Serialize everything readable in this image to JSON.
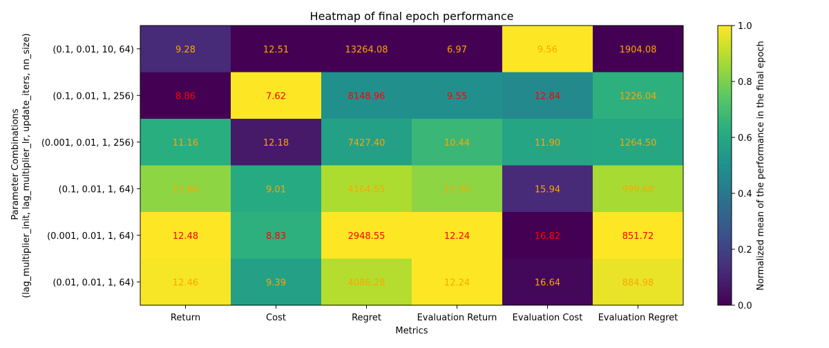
{
  "chart_data": {
    "type": "heatmap",
    "title": "Heatmap of final epoch performance",
    "xlabel": "Metrics",
    "ylabel_line1": "Parameter Combinations",
    "ylabel_line2": "(lag_multiplier_init, lag_multiplier_lr, update_iters, nn_size)",
    "columns": [
      "Return",
      "Cost",
      "Regret",
      "Evaluation Return",
      "Evaluation Cost",
      "Evaluation Regret"
    ],
    "rows": [
      "(0.1, 0.01, 10, 64)",
      "(0.1, 0.01, 1, 256)",
      "(0.001, 0.01, 1, 256)",
      "(0.1, 0.01, 1, 64)",
      "(0.001, 0.01, 1, 64)",
      "(0.01, 0.01, 1, 64)"
    ],
    "values": [
      [
        "9.28",
        "12.51",
        "13264.08",
        "6.97",
        "9.56",
        "1904.08"
      ],
      [
        "8.86",
        "7.62",
        "8148.96",
        "9.55",
        "12.84",
        "1226.04"
      ],
      [
        "11.16",
        "12.18",
        "7427.40",
        "10.44",
        "11.90",
        "1264.50"
      ],
      [
        "11.86",
        "9.01",
        "4164.55",
        "11.50",
        "15.94",
        "999.68"
      ],
      [
        "12.48",
        "8.83",
        "2948.55",
        "12.24",
        "16.82",
        "851.72"
      ],
      [
        "12.46",
        "9.39",
        "4086.28",
        "12.24",
        "16.64",
        "884.98"
      ]
    ],
    "normalized": [
      [
        0.12,
        0.0,
        0.0,
        0.0,
        1.0,
        0.0
      ],
      [
        0.0,
        1.0,
        0.5,
        0.5,
        0.47,
        0.64
      ],
      [
        0.63,
        0.07,
        0.57,
        0.67,
        0.59,
        0.6
      ],
      [
        0.83,
        0.61,
        0.88,
        0.83,
        0.12,
        0.87
      ],
      [
        1.0,
        0.64,
        1.0,
        1.0,
        0.0,
        1.0
      ],
      [
        0.99,
        0.57,
        0.89,
        1.0,
        0.02,
        0.97
      ]
    ],
    "label_colors": [
      [
        "orange",
        "orange",
        "orange",
        "orange",
        "orange",
        "orange"
      ],
      [
        "red",
        "red",
        "red",
        "red",
        "red",
        "orange"
      ],
      [
        "orange",
        "orange",
        "orange",
        "orange",
        "orange",
        "orange"
      ],
      [
        "orange",
        "orange",
        "orange",
        "orange",
        "orange",
        "orange"
      ],
      [
        "red",
        "red",
        "red",
        "red",
        "red",
        "red"
      ],
      [
        "orange",
        "orange",
        "orange",
        "orange",
        "orange",
        "orange"
      ]
    ],
    "colormap": "viridis",
    "colorbar": {
      "label": "Normalized mean of the performance in the final epoch",
      "range": [
        0.0,
        1.0
      ],
      "ticks": [
        "0.0",
        "0.2",
        "0.4",
        "0.6",
        "0.8",
        "1.0"
      ]
    }
  }
}
